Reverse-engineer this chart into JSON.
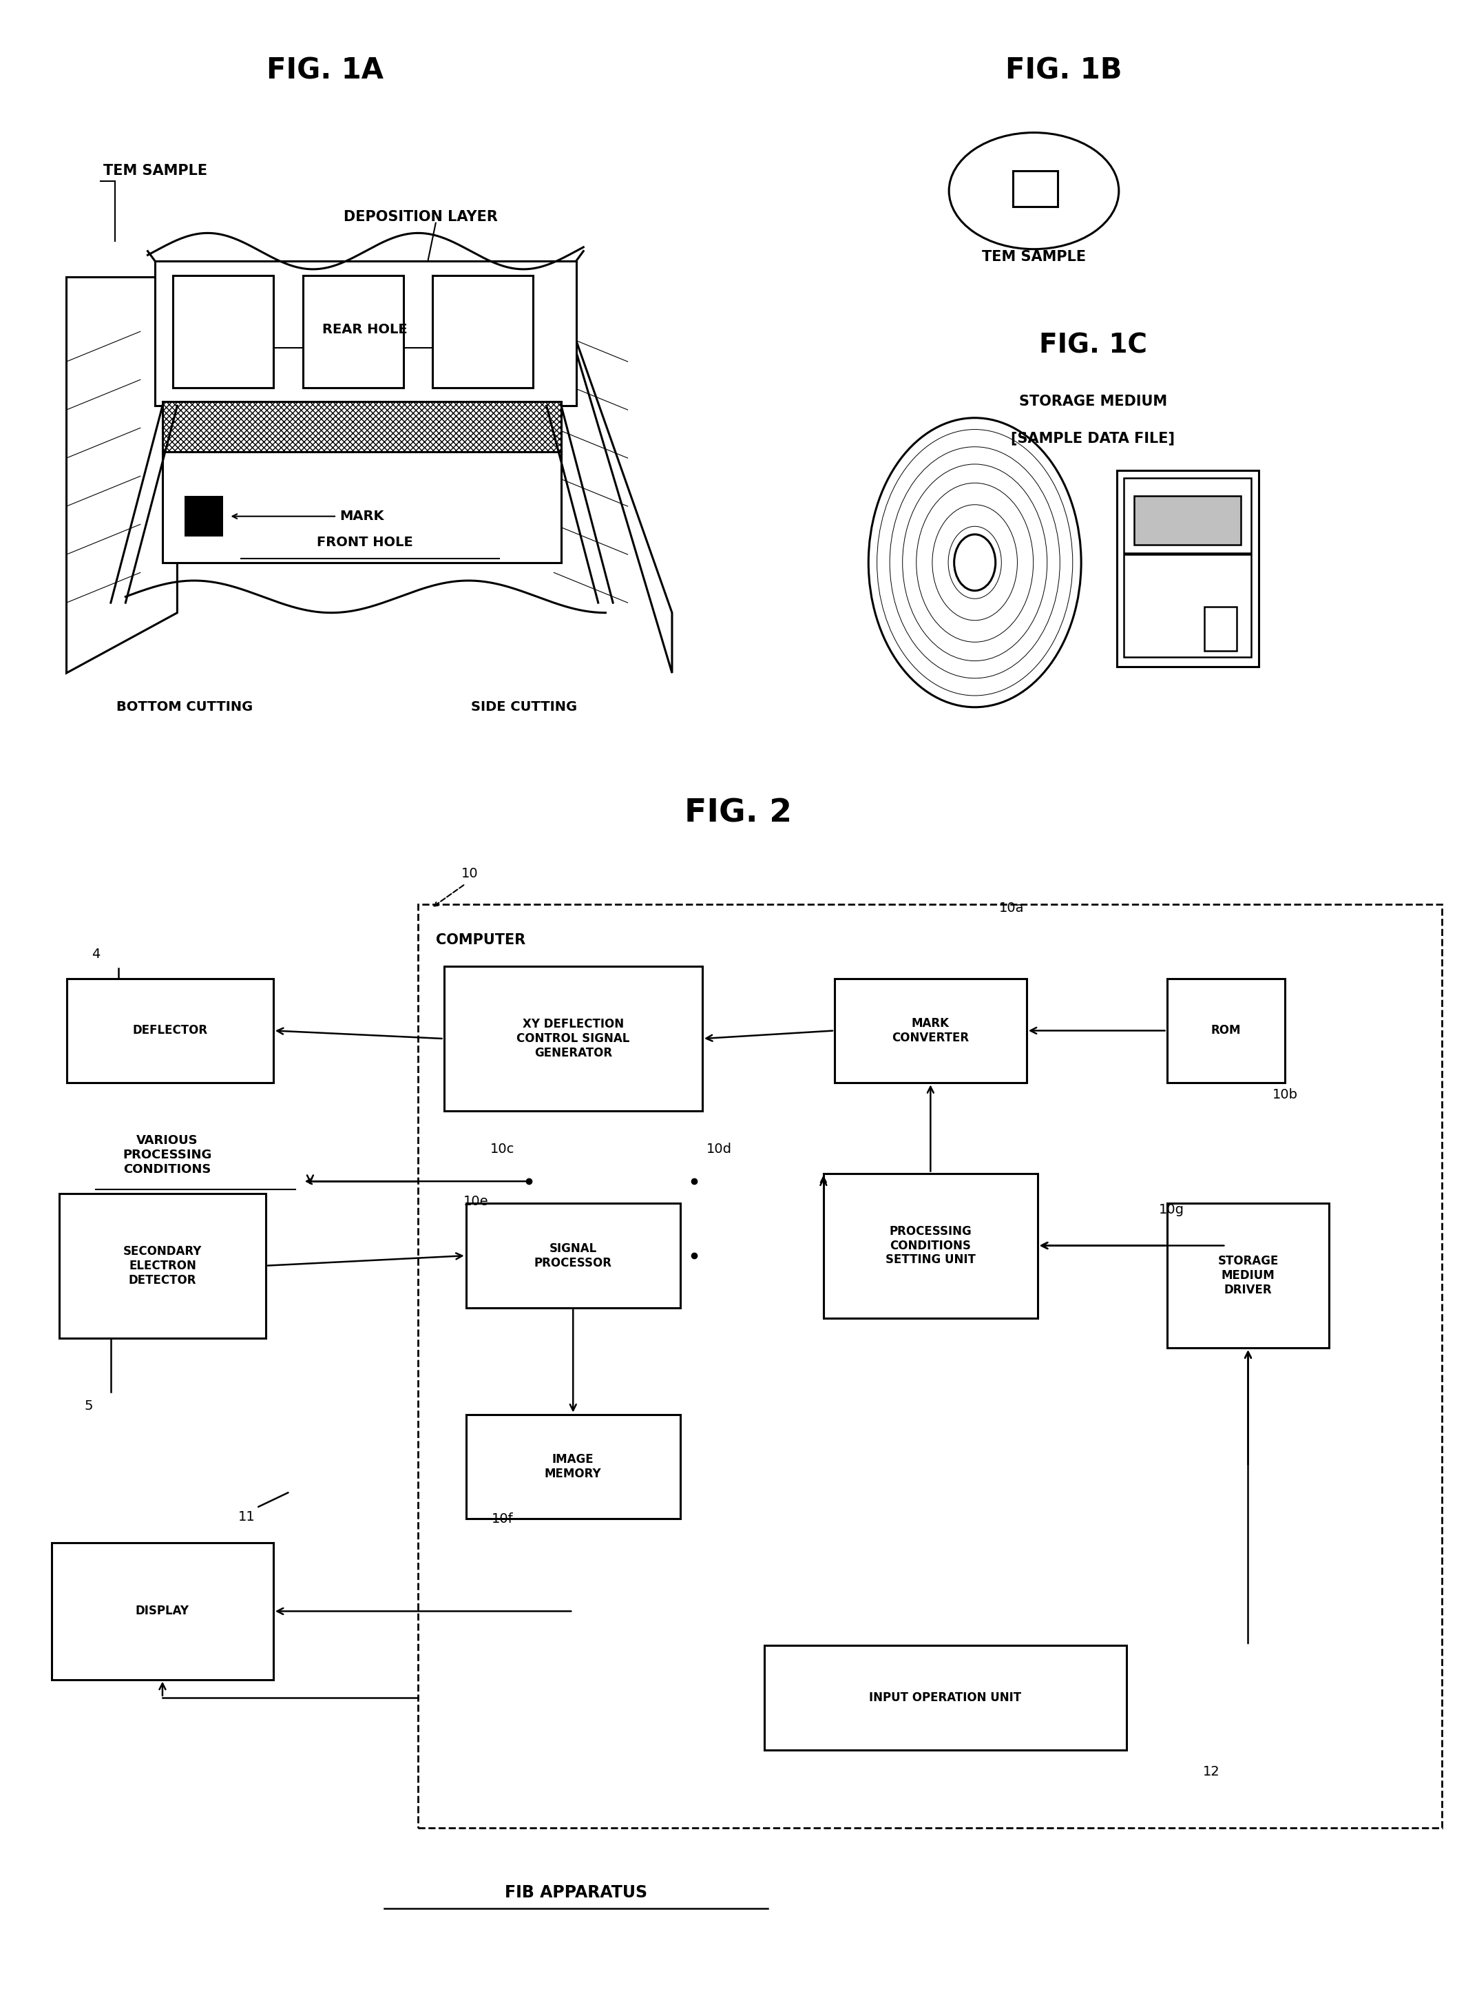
{
  "bg_color": "#ffffff",
  "fig_width": 21.45,
  "fig_height": 29.17,
  "fig1a_title": "FIG. 1A",
  "fig1b_title": "FIG. 1B",
  "fig1c_title": "FIG. 1C",
  "fig2_title": "FIG. 2",
  "tem_sample_label": "TEM SAMPLE",
  "deposition_layer_label": "DEPOSITION LAYER",
  "rear_hole_label": "REAR HOLE",
  "front_hole_label": "FRONT HOLE",
  "mark_label": "MARK",
  "bottom_cutting_label": "BOTTOM CUTTING",
  "side_cutting_label": "SIDE CUTTING",
  "fig1b_tem_sample": "TEM SAMPLE",
  "fig1c_storage": "STORAGE MEDIUM",
  "fig1c_sample_file": "[SAMPLE DATA FILE]",
  "computer_label": "COMPUTER",
  "fib_label": "FIB APPARATUS",
  "various_label": "VARIOUS\nPROCESSING\nCONDITIONS"
}
